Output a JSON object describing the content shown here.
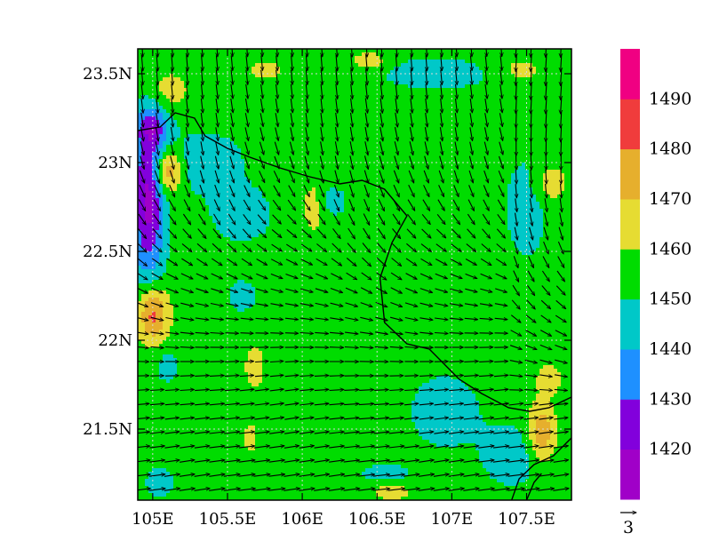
{
  "chart_data": {
    "type": "heatmap",
    "xlim": [
      104.9,
      107.8
    ],
    "ylim": [
      21.1,
      23.64
    ],
    "x_ticks": [
      {
        "value": 105.0,
        "label": "105E"
      },
      {
        "value": 105.5,
        "label": "105.5E"
      },
      {
        "value": 106.0,
        "label": "106E"
      },
      {
        "value": 106.5,
        "label": "106.5E"
      },
      {
        "value": 107.0,
        "label": "107E"
      },
      {
        "value": 107.5,
        "label": "107.5E"
      }
    ],
    "y_ticks": [
      {
        "value": 21.5,
        "label": "21.5N"
      },
      {
        "value": 22.0,
        "label": "22N"
      },
      {
        "value": 22.5,
        "label": "22.5N"
      },
      {
        "value": 23.0,
        "label": "23N"
      },
      {
        "value": 23.5,
        "label": "23.5N"
      }
    ],
    "grid": true,
    "colorbar": {
      "position": "right",
      "levels": [
        {
          "label": "",
          "color": "#a000c8"
        },
        {
          "label": "1420",
          "color": "#8200dc"
        },
        {
          "label": "1430",
          "color": "#1e90ff"
        },
        {
          "label": "1440",
          "color": "#00c8c8"
        },
        {
          "label": "1450",
          "color": "#00dc00"
        },
        {
          "label": "1460",
          "color": "#e6dc32"
        },
        {
          "label": "1470",
          "color": "#e6af2d"
        },
        {
          "label": "1480",
          "color": "#f03c3c"
        },
        {
          "label": "1490",
          "color": "#f00082"
        }
      ]
    },
    "field": {
      "base_value": 1455,
      "blobs": [
        {
          "lon": 105.0,
          "lat": 22.15,
          "rx": 0.1,
          "ry": 0.16,
          "amp": 31
        },
        {
          "lon": 105.1,
          "lat": 22.95,
          "rx": 0.09,
          "ry": 0.13,
          "amp": 29
        },
        {
          "lon": 104.97,
          "lat": 22.78,
          "rx": 0.11,
          "ry": 0.45,
          "amp": -38
        },
        {
          "lon": 105.0,
          "lat": 23.2,
          "rx": 0.12,
          "ry": 0.12,
          "amp": -20
        },
        {
          "lon": 105.1,
          "lat": 23.4,
          "rx": 0.15,
          "ry": 0.12,
          "amp": 10
        },
        {
          "lon": 105.35,
          "lat": 23.0,
          "rx": 0.3,
          "ry": 0.2,
          "amp": -10
        },
        {
          "lon": 105.6,
          "lat": 22.7,
          "rx": 0.2,
          "ry": 0.15,
          "amp": -12
        },
        {
          "lon": 106.08,
          "lat": 22.75,
          "rx": 0.08,
          "ry": 0.15,
          "amp": 10
        },
        {
          "lon": 106.2,
          "lat": 22.78,
          "rx": 0.1,
          "ry": 0.09,
          "amp": -11
        },
        {
          "lon": 105.68,
          "lat": 21.85,
          "rx": 0.07,
          "ry": 0.14,
          "amp": 10
        },
        {
          "lon": 105.65,
          "lat": 21.45,
          "rx": 0.06,
          "ry": 0.09,
          "amp": 9
        },
        {
          "lon": 106.9,
          "lat": 23.5,
          "rx": 0.45,
          "ry": 0.1,
          "amp": -10
        },
        {
          "lon": 106.45,
          "lat": 23.57,
          "rx": 0.12,
          "ry": 0.05,
          "amp": 13
        },
        {
          "lon": 105.75,
          "lat": 23.52,
          "rx": 0.15,
          "ry": 0.06,
          "amp": 8
        },
        {
          "lon": 107.45,
          "lat": 23.52,
          "rx": 0.18,
          "ry": 0.08,
          "amp": 9
        },
        {
          "lon": 107.65,
          "lat": 22.88,
          "rx": 0.12,
          "ry": 0.12,
          "amp": 12
        },
        {
          "lon": 107.5,
          "lat": 22.75,
          "rx": 0.15,
          "ry": 0.3,
          "amp": -11
        },
        {
          "lon": 107.6,
          "lat": 21.48,
          "rx": 0.09,
          "ry": 0.16,
          "amp": 24
        },
        {
          "lon": 107.65,
          "lat": 21.78,
          "rx": 0.08,
          "ry": 0.08,
          "amp": 12
        },
        {
          "lon": 107.4,
          "lat": 21.35,
          "rx": 0.2,
          "ry": 0.18,
          "amp": -12
        },
        {
          "lon": 106.95,
          "lat": 21.6,
          "rx": 0.25,
          "ry": 0.22,
          "amp": -11
        },
        {
          "lon": 106.55,
          "lat": 21.25,
          "rx": 0.18,
          "ry": 0.06,
          "amp": -10
        },
        {
          "lon": 106.6,
          "lat": 21.15,
          "rx": 0.13,
          "ry": 0.05,
          "amp": 11
        },
        {
          "lon": 105.6,
          "lat": 22.25,
          "rx": 0.1,
          "ry": 0.1,
          "amp": -10
        },
        {
          "lon": 105.1,
          "lat": 21.85,
          "rx": 0.08,
          "ry": 0.1,
          "amp": -10
        },
        {
          "lon": 105.05,
          "lat": 21.2,
          "rx": 0.1,
          "ry": 0.08,
          "amp": -13
        }
      ]
    },
    "wind": {
      "step_lon": 0.1,
      "step_lat": 0.08
    },
    "vector_reference": {
      "label": "3"
    },
    "boundaries": [
      [
        [
          104.9,
          23.18
        ],
        [
          105.05,
          23.2
        ],
        [
          105.15,
          23.28
        ],
        [
          105.28,
          23.25
        ],
        [
          105.35,
          23.15
        ],
        [
          105.5,
          23.08
        ],
        [
          105.65,
          23.03
        ],
        [
          105.85,
          22.97
        ],
        [
          106.05,
          22.92
        ],
        [
          106.25,
          22.88
        ],
        [
          106.4,
          22.9
        ],
        [
          106.55,
          22.85
        ],
        [
          106.7,
          22.7
        ],
        [
          106.6,
          22.55
        ],
        [
          106.52,
          22.35
        ],
        [
          106.55,
          22.1
        ],
        [
          106.7,
          21.98
        ],
        [
          106.85,
          21.95
        ],
        [
          107.05,
          21.78
        ],
        [
          107.2,
          21.7
        ],
        [
          107.38,
          21.62
        ],
        [
          107.52,
          21.6
        ],
        [
          107.65,
          21.62
        ],
        [
          107.8,
          21.68
        ]
      ],
      [
        [
          107.8,
          21.45
        ],
        [
          107.68,
          21.35
        ],
        [
          107.55,
          21.3
        ],
        [
          107.45,
          21.22
        ],
        [
          107.4,
          21.1
        ]
      ],
      [
        [
          107.5,
          21.1
        ],
        [
          107.55,
          21.2
        ],
        [
          107.6,
          21.25
        ]
      ]
    ]
  }
}
